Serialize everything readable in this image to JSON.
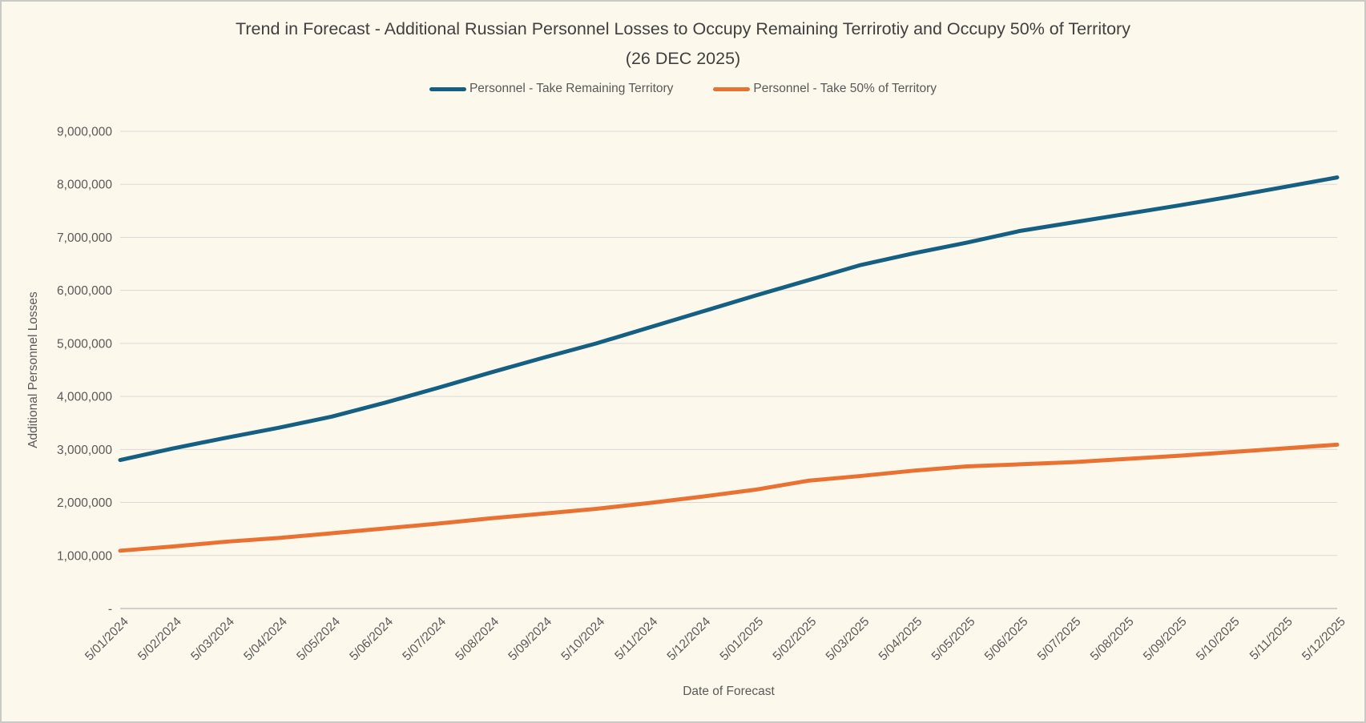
{
  "page": {
    "background": "#FDF8EC",
    "border_color": "#C9C9C5"
  },
  "chart_data": {
    "type": "line",
    "title": "Trend in Forecast - Additional Russian Personnel Losses to Occupy Remaining Terrirotiy and Occupy 50% of Territory",
    "subtitle": "(26 DEC 2025)",
    "xlabel": "Date of Forecast",
    "ylabel": "Additional Personnel Losses",
    "ylim": [
      0,
      9000000
    ],
    "grid": "horizontal",
    "legend_position": "top",
    "grid_color": "#D9D9D9",
    "axis_line_color": "#BFBFBF",
    "tick_color": "#595959",
    "title_color": "#404040",
    "x_categories": [
      "5/01/2024",
      "5/02/2024",
      "5/03/2024",
      "5/04/2024",
      "5/05/2024",
      "5/06/2024",
      "5/07/2024",
      "5/08/2024",
      "5/09/2024",
      "5/10/2024",
      "5/11/2024",
      "5/12/2024",
      "5/01/2025",
      "5/02/2025",
      "5/03/2025",
      "5/04/2025",
      "5/05/2025",
      "5/06/2025",
      "5/07/2025",
      "5/08/2025",
      "5/09/2025",
      "5/10/2025",
      "5/11/2025",
      "5/12/2025"
    ],
    "y_ticks": [
      {
        "value": 0,
        "label": "-"
      },
      {
        "value": 1000000,
        "label": "1,000,000"
      },
      {
        "value": 2000000,
        "label": "2,000,000"
      },
      {
        "value": 3000000,
        "label": "3,000,000"
      },
      {
        "value": 4000000,
        "label": "4,000,000"
      },
      {
        "value": 5000000,
        "label": "5,000,000"
      },
      {
        "value": 6000000,
        "label": "6,000,000"
      },
      {
        "value": 7000000,
        "label": "7,000,000"
      },
      {
        "value": 8000000,
        "label": "8,000,000"
      },
      {
        "value": 9000000,
        "label": "9,000,000"
      }
    ],
    "series": [
      {
        "name": "Personnel - Take Remaining Territory",
        "color": "#156082",
        "values": [
          2800000,
          3020000,
          3220000,
          3410000,
          3620000,
          3880000,
          4160000,
          4450000,
          4730000,
          5000000,
          5300000,
          5600000,
          5900000,
          6190000,
          6480000,
          6700000,
          6900000,
          7120000,
          7280000,
          7440000,
          7600000,
          7770000,
          7950000,
          8130000
        ]
      },
      {
        "name": "Personnel - Take 50% of Territory",
        "color": "#E97132",
        "values": [
          1090000,
          1170000,
          1260000,
          1330000,
          1420000,
          1510000,
          1600000,
          1700000,
          1790000,
          1880000,
          1990000,
          2110000,
          2240000,
          2410000,
          2500000,
          2600000,
          2680000,
          2720000,
          2760000,
          2820000,
          2880000,
          2950000,
          3020000,
          3090000
        ]
      }
    ]
  }
}
